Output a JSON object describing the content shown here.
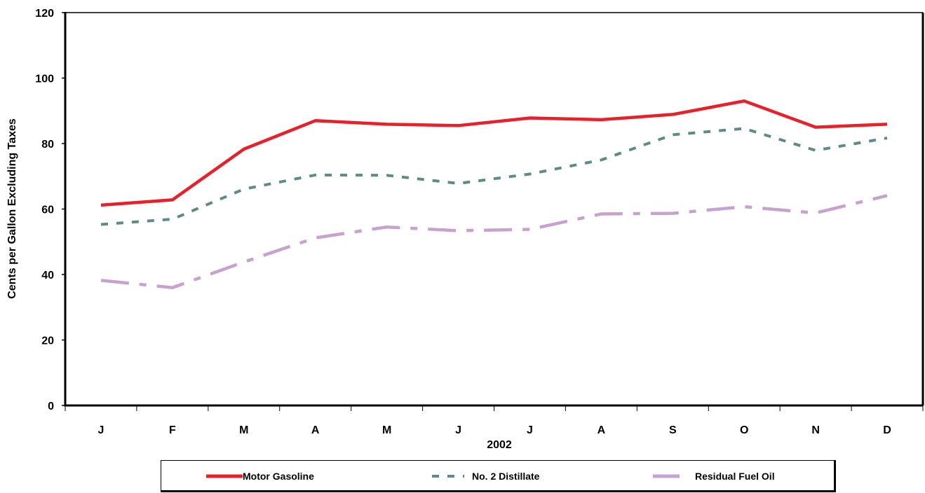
{
  "chart_data": {
    "type": "line",
    "xlabel": "2002",
    "ylabel": "Cents per Gallon Excluding Taxes",
    "categories": [
      "J",
      "F",
      "M",
      "A",
      "M",
      "J",
      "J",
      "A",
      "S",
      "O",
      "N",
      "D"
    ],
    "ylim": [
      0,
      120
    ],
    "yticks": [
      0,
      20,
      40,
      60,
      80,
      100,
      120
    ],
    "grid": false,
    "legend_position": "bottom",
    "series": [
      {
        "name": "Motor Gasoline",
        "color": "#e8202a",
        "line_style": "solid",
        "values": [
          61.2,
          62.8,
          78.3,
          87.0,
          85.9,
          85.5,
          87.8,
          87.3,
          88.9,
          93.0,
          85.0,
          85.9
        ]
      },
      {
        "name": "No. 2 Distillate",
        "color": "#5e8b87",
        "line_style": "dashed",
        "values": [
          55.3,
          56.9,
          66.1,
          70.4,
          70.3,
          67.8,
          70.7,
          75.0,
          82.7,
          84.6,
          77.9,
          81.7
        ]
      },
      {
        "name": "Residual Fuel Oil",
        "color": "#c8a2cf",
        "line_style": "dash-dot",
        "values": [
          38.2,
          36.0,
          43.8,
          51.2,
          54.5,
          53.4,
          53.8,
          58.5,
          58.7,
          60.7,
          58.8,
          64.1
        ]
      }
    ]
  }
}
